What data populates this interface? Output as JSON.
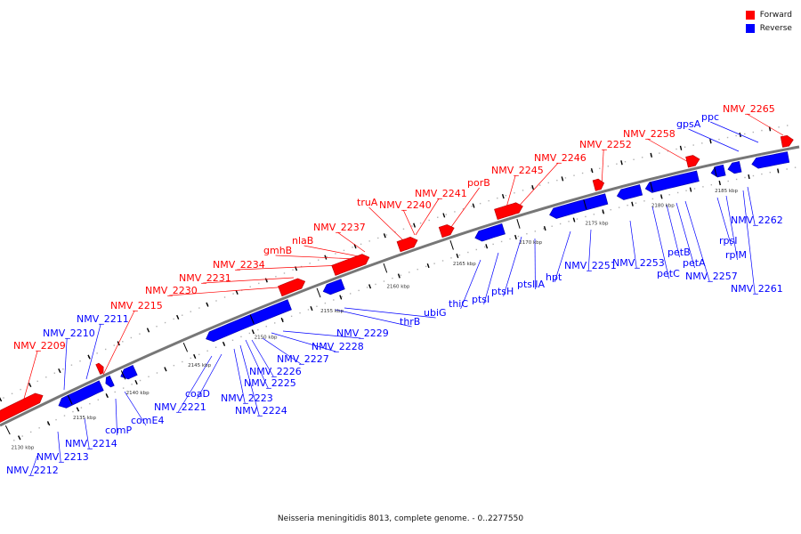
{
  "legend": {
    "forward_label": "Forward",
    "reverse_label": "Reverse",
    "forward_color": "#ff0000",
    "reverse_color": "#0000ff"
  },
  "caption": "Neisseria meningitidis 8013, complete genome. - 0..2277550",
  "ticks": [
    "2130 kbp",
    "2135 kbp",
    "2140 kbp",
    "2145 kbp",
    "2150 kbp",
    "2155 kbp",
    "2160 kbp",
    "2165 kbp",
    "2170 kbp",
    "2175 kbp",
    "2180 kbp",
    "2185 kbp"
  ],
  "forward_genes": [
    "NMV_2209",
    "NMV_2215",
    "NMV_2230",
    "NMV_2231",
    "NMV_2234",
    "gmhB",
    "nlaB",
    "NMV_2237",
    "truA",
    "NMV_2240",
    "NMV_2241",
    "porB",
    "NMV_2245",
    "NMV_2246",
    "NMV_2252",
    "NMV_2258",
    "NMV_2265"
  ],
  "reverse_genes": [
    "NMV_2210",
    "NMV_2211",
    "NMV_2212",
    "NMV_2213",
    "NMV_2214",
    "comP",
    "comE4",
    "NMV_2221",
    "coaD",
    "NMV_2223",
    "NMV_2224",
    "NMV_2225",
    "NMV_2226",
    "NMV_2227",
    "NMV_2228",
    "NMV_2229",
    "thrB",
    "ubiG",
    "thiC",
    "ptsI",
    "ptsH",
    "ptsIIA",
    "hpt",
    "NMV_2251",
    "NMV_2253",
    "petC",
    "petB",
    "petA",
    "NMV_2257",
    "rpsI",
    "rplM",
    "NMV_2261",
    "NMV_2262",
    "gpsA",
    "ppc"
  ]
}
